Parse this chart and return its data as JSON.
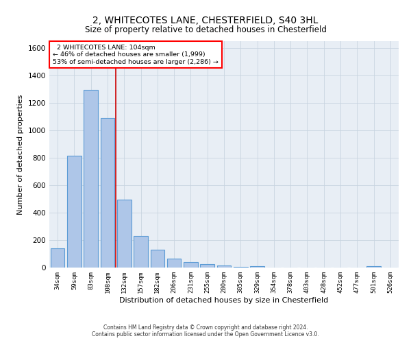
{
  "title1": "2, WHITECOTES LANE, CHESTERFIELD, S40 3HL",
  "title2": "Size of property relative to detached houses in Chesterfield",
  "xlabel": "Distribution of detached houses by size in Chesterfield",
  "ylabel": "Number of detached properties",
  "footer1": "Contains HM Land Registry data © Crown copyright and database right 2024.",
  "footer2": "Contains public sector information licensed under the Open Government Licence v3.0.",
  "annotation_line1": "  2 WHITECOTES LANE: 104sqm  ",
  "annotation_line2": "← 46% of detached houses are smaller (1,999)",
  "annotation_line3": "53% of semi-detached houses are larger (2,286) →",
  "bar_color": "#aec6e8",
  "bar_edge_color": "#5b9bd5",
  "vline_color": "#cc0000",
  "categories": [
    "34sqm",
    "59sqm",
    "83sqm",
    "108sqm",
    "132sqm",
    "157sqm",
    "182sqm",
    "206sqm",
    "231sqm",
    "255sqm",
    "280sqm",
    "305sqm",
    "329sqm",
    "354sqm",
    "378sqm",
    "403sqm",
    "428sqm",
    "452sqm",
    "477sqm",
    "501sqm",
    "526sqm"
  ],
  "values": [
    140,
    815,
    1295,
    1090,
    495,
    230,
    130,
    65,
    38,
    25,
    15,
    5,
    12,
    2,
    2,
    2,
    2,
    2,
    2,
    10,
    2
  ],
  "ylim": [
    0,
    1650
  ],
  "vline_x": 3.5,
  "grid_color": "#c8d4e0",
  "bg_color": "#e8eef5",
  "title1_fontsize": 10,
  "title2_fontsize": 9
}
